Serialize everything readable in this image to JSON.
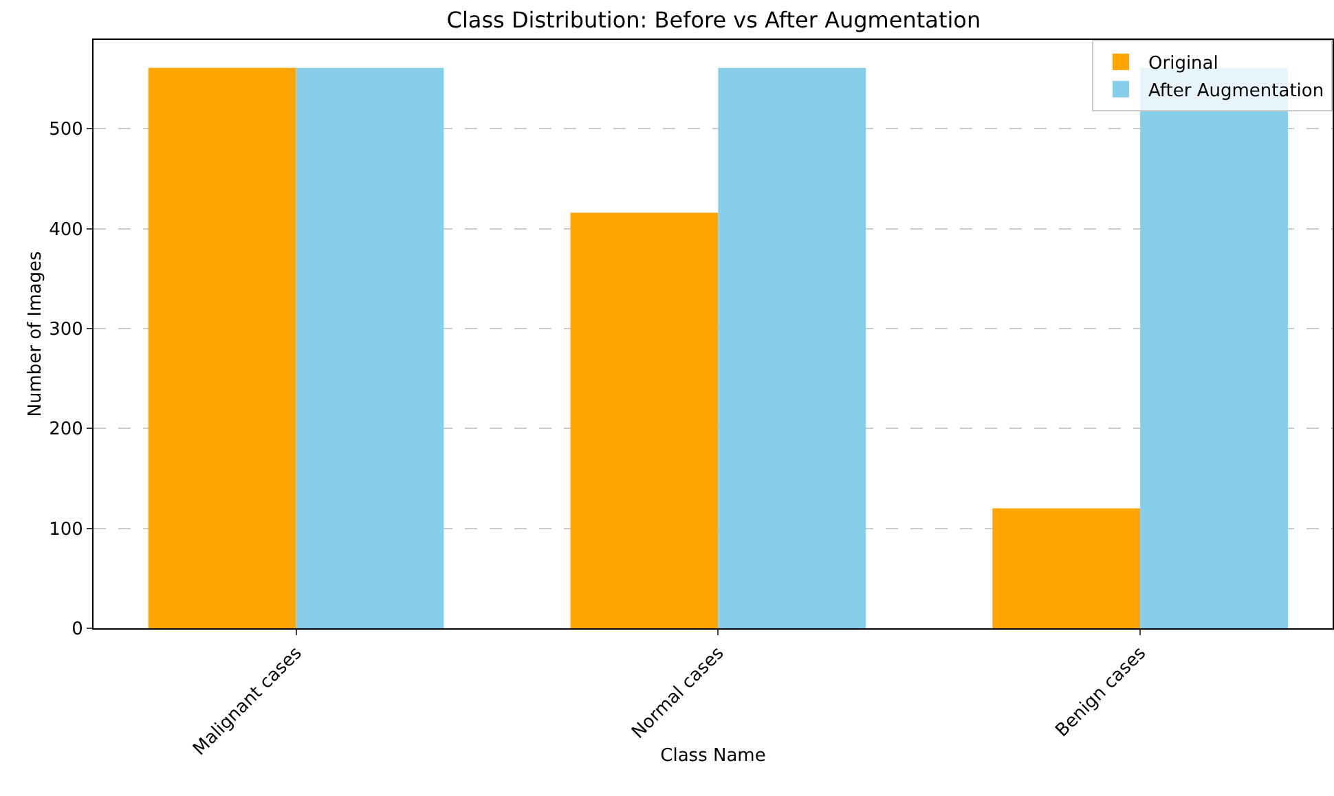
{
  "chart_data": {
    "type": "bar",
    "title": "Class Distribution: Before vs After Augmentation",
    "xlabel": "Class Name",
    "ylabel": "Number of Images",
    "categories": [
      "Malignant cases",
      "Normal cases",
      "Benign cases"
    ],
    "series": [
      {
        "name": "Original",
        "color": "#ffa500",
        "values": [
          561,
          416,
          120
        ]
      },
      {
        "name": "After Augmentation",
        "color": "#87ceeb",
        "values": [
          561,
          561,
          561
        ]
      }
    ],
    "ylim": [
      0,
      589
    ],
    "yticks": [
      0,
      100,
      200,
      300,
      400,
      500
    ],
    "grid": "y",
    "legend": "top right"
  }
}
